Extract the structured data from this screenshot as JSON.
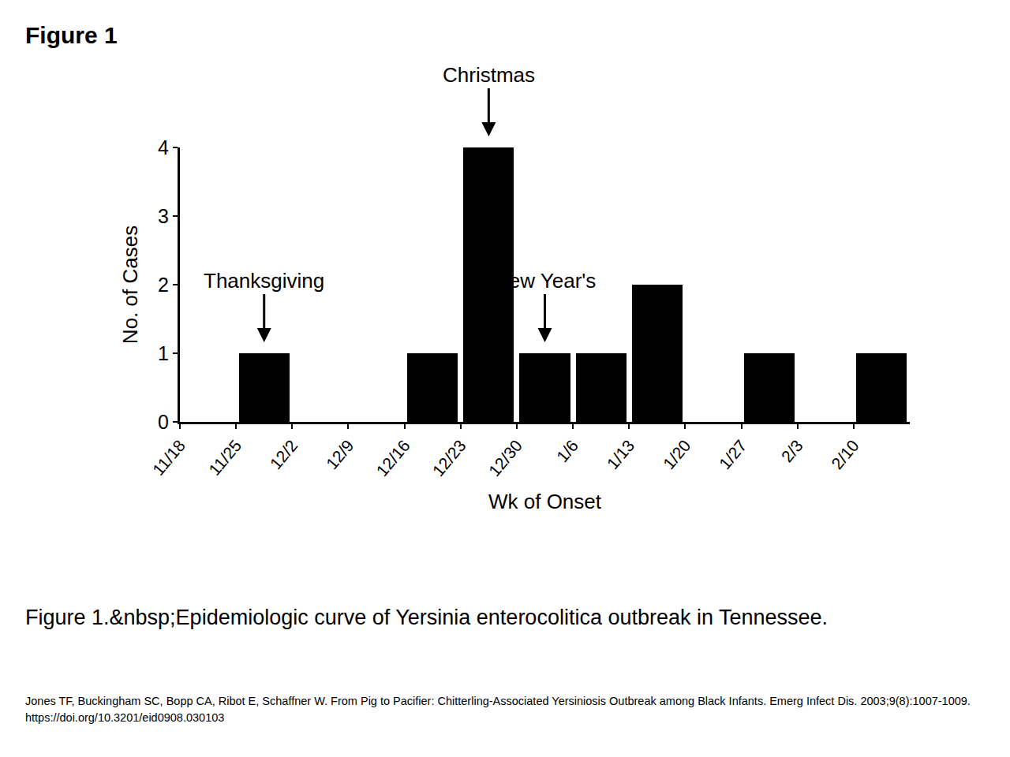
{
  "header": "Figure 1",
  "caption": "Figure 1.&nbsp;Epidemiologic curve of Yersinia enterocolitica outbreak in Tennessee.",
  "citation": "Jones TF, Buckingham SC, Bopp CA, Ribot E, Schaffner W. From Pig to Pacifier: Chitterling-Associated Yersiniosis Outbreak among Black Infants. Emerg Infect Dis. 2003;9(8):1007-1009. https://doi.org/10.3201/eid0908.030103",
  "chart_data": {
    "type": "bar",
    "x_label": "Wk of Onset",
    "y_label": "No. of Cases",
    "categories": [
      "11/18",
      "11/25",
      "12/2",
      "12/9",
      "12/16",
      "12/23",
      "12/30",
      "1/6",
      "1/13",
      "1/20",
      "1/27",
      "2/3",
      "2/10"
    ],
    "values": [
      0,
      1,
      0,
      0,
      1,
      4,
      1,
      1,
      2,
      0,
      1,
      0,
      1
    ],
    "color": "#000000",
    "ylim": [
      0,
      4
    ],
    "yticks": [
      0,
      1,
      2,
      3,
      4
    ],
    "grid": false,
    "annotations": [
      {
        "text": "Thanksgiving",
        "category": "11/25"
      },
      {
        "text": "Christmas",
        "category": "12/23"
      },
      {
        "text": "New Year's",
        "category": "12/30"
      }
    ]
  }
}
